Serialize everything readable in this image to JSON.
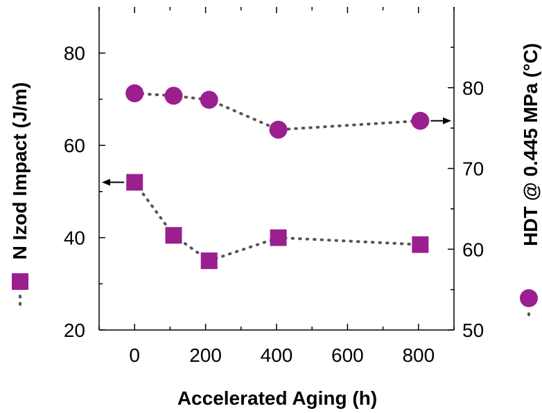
{
  "chart_data": {
    "type": "line",
    "xlabel": "Accelerated Aging (h)",
    "ylabel_left": "N Izod Impact (J/m)",
    "ylabel_right": "HDT @ 0.445 MPa (°C)",
    "xlim": [
      -100,
      900
    ],
    "ylim_left": [
      20,
      90
    ],
    "ylim_right": [
      50,
      90
    ],
    "x_ticks": [
      0,
      200,
      400,
      600,
      800
    ],
    "y_left_ticks": [
      20,
      40,
      60,
      80
    ],
    "y_right_ticks": [
      50,
      60,
      70,
      80
    ],
    "grid": false,
    "series": [
      {
        "axis": "left",
        "marker": "square",
        "color": "#9b1f8f",
        "x": [
          0,
          110,
          210,
          405,
          805
        ],
        "values": [
          52,
          40.5,
          35,
          40,
          38.5
        ]
      },
      {
        "axis": "right",
        "marker": "circle",
        "color": "#9b1f8f",
        "x": [
          0,
          110,
          210,
          405,
          805
        ],
        "values": [
          79.3,
          79.0,
          78.5,
          74.8,
          75.9
        ]
      }
    ]
  }
}
